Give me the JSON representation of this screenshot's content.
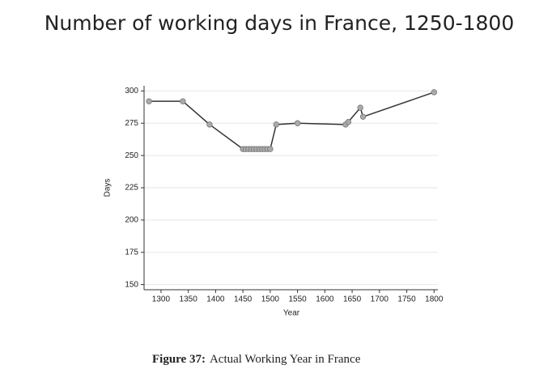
{
  "chart_data": {
    "type": "line",
    "title": "Number of working days in France, 1250-1800",
    "caption_label": "Figure 37:",
    "caption": "Actual Working Year in France",
    "x_label": "Year",
    "y_label": "Days",
    "x": [
      1278,
      1340,
      1389,
      1450,
      1455,
      1460,
      1465,
      1470,
      1475,
      1480,
      1485,
      1490,
      1495,
      1500,
      1511,
      1550,
      1638,
      1643,
      1665,
      1670,
      1800
    ],
    "series": [
      {
        "name": "Days",
        "color": "#333333",
        "values": [
          292,
          292,
          274,
          255,
          255,
          255,
          255,
          255,
          255,
          255,
          255,
          255,
          255,
          255,
          274,
          275,
          274,
          276,
          287,
          280,
          299
        ]
      }
    ],
    "xlim": [
      1269,
      1807
    ],
    "ylim": [
      146,
      304
    ],
    "xticks": [
      1300,
      1350,
      1400,
      1450,
      1500,
      1550,
      1600,
      1650,
      1700,
      1750,
      1800
    ],
    "yticks": [
      150,
      175,
      200,
      225,
      250,
      275,
      300
    ],
    "grid": true
  }
}
